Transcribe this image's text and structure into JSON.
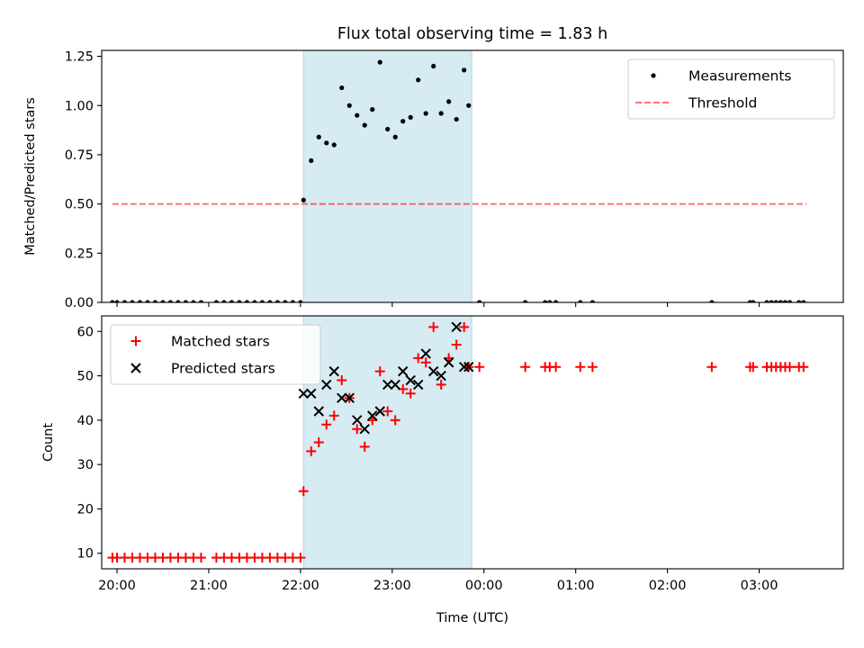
{
  "figure": {
    "title": "Flux total observing time = 1.83 h"
  },
  "chart_data": [
    {
      "type": "scatter",
      "panel": "top",
      "title": "Flux total observing time = 1.83 h",
      "xlabel": "",
      "ylabel": "Matched/Predicted stars",
      "xlim": [
        "19:50",
        "03:55"
      ],
      "ylim": [
        0,
        1.28
      ],
      "x_ticks": [
        "20:00",
        "21:00",
        "22:00",
        "23:00",
        "00:00",
        "01:00",
        "02:00",
        "03:00"
      ],
      "y_ticks": [
        "0.00",
        "0.25",
        "0.50",
        "0.75",
        "1.00",
        "1.25"
      ],
      "shaded_span": {
        "start": "22:02",
        "end": "23:52",
        "color": "#add8e6"
      },
      "legend_position": "upper right",
      "colors": {
        "measurements": "#000000",
        "threshold": "#ff0000"
      },
      "series": [
        {
          "name": "Measurements",
          "marker": "dot",
          "x": [
            "19:57",
            "20:00",
            "20:05",
            "20:10",
            "20:15",
            "20:20",
            "20:25",
            "20:30",
            "20:35",
            "20:40",
            "20:45",
            "20:50",
            "20:55",
            "21:05",
            "21:10",
            "21:15",
            "21:20",
            "21:25",
            "21:30",
            "21:35",
            "21:40",
            "21:45",
            "21:50",
            "21:55",
            "22:00",
            "22:02",
            "22:07",
            "22:12",
            "22:17",
            "22:22",
            "22:27",
            "22:32",
            "22:37",
            "22:42",
            "22:47",
            "22:52",
            "22:57",
            "23:02",
            "23:07",
            "23:12",
            "23:17",
            "23:22",
            "23:27",
            "23:32",
            "23:37",
            "23:42",
            "23:47",
            "23:50",
            "23:57",
            "00:27",
            "00:40",
            "00:43",
            "00:47",
            "01:03",
            "01:11",
            "02:29",
            "02:54",
            "02:56",
            "03:05",
            "03:08",
            "03:11",
            "03:14",
            "03:17",
            "03:20",
            "03:26",
            "03:29"
          ],
          "y": [
            0,
            0,
            0,
            0,
            0,
            0,
            0,
            0,
            0,
            0,
            0,
            0,
            0,
            0,
            0,
            0,
            0,
            0,
            0,
            0,
            0,
            0,
            0,
            0,
            0,
            0.52,
            0.72,
            0.84,
            0.81,
            0.8,
            1.09,
            1.0,
            0.95,
            0.9,
            0.98,
            1.22,
            0.88,
            0.84,
            0.92,
            0.94,
            1.13,
            0.96,
            1.2,
            0.96,
            1.02,
            0.93,
            1.18,
            1.0,
            0,
            0,
            0,
            0,
            0,
            0,
            0,
            0,
            0,
            0,
            0,
            0,
            0,
            0,
            0,
            0,
            0,
            0
          ]
        },
        {
          "name": "Threshold",
          "marker": "dashed-line",
          "x": [
            "19:57",
            "03:31"
          ],
          "y": [
            0.5,
            0.5
          ]
        }
      ]
    },
    {
      "type": "scatter",
      "panel": "bottom",
      "xlabel": "Time (UTC)",
      "ylabel": "Count",
      "xlim": [
        "19:50",
        "03:55"
      ],
      "ylim": [
        6.5,
        63.5
      ],
      "x_ticks": [
        "20:00",
        "21:00",
        "22:00",
        "23:00",
        "00:00",
        "01:00",
        "02:00",
        "03:00"
      ],
      "y_ticks": [
        "10",
        "20",
        "30",
        "40",
        "50",
        "60"
      ],
      "shaded_span": {
        "start": "22:02",
        "end": "23:52",
        "color": "#add8e6"
      },
      "legend_position": "upper left",
      "colors": {
        "matched": "#ff0000",
        "predicted": "#000000"
      },
      "series": [
        {
          "name": "Matched stars",
          "marker": "plus",
          "x": [
            "19:57",
            "20:00",
            "20:05",
            "20:10",
            "20:15",
            "20:20",
            "20:25",
            "20:30",
            "20:35",
            "20:40",
            "20:45",
            "20:50",
            "20:55",
            "21:05",
            "21:10",
            "21:15",
            "21:20",
            "21:25",
            "21:30",
            "21:35",
            "21:40",
            "21:45",
            "21:50",
            "21:55",
            "22:00",
            "22:02",
            "22:07",
            "22:12",
            "22:17",
            "22:22",
            "22:27",
            "22:32",
            "22:37",
            "22:42",
            "22:47",
            "22:52",
            "22:57",
            "23:02",
            "23:07",
            "23:12",
            "23:17",
            "23:22",
            "23:27",
            "23:32",
            "23:37",
            "23:42",
            "23:47",
            "23:50",
            "23:57",
            "00:27",
            "00:40",
            "00:43",
            "00:47",
            "01:03",
            "01:11",
            "02:29",
            "02:54",
            "02:56",
            "03:05",
            "03:08",
            "03:11",
            "03:14",
            "03:17",
            "03:20",
            "03:26",
            "03:29"
          ],
          "y": [
            9,
            9,
            9,
            9,
            9,
            9,
            9,
            9,
            9,
            9,
            9,
            9,
            9,
            9,
            9,
            9,
            9,
            9,
            9,
            9,
            9,
            9,
            9,
            9,
            9,
            24,
            33,
            35,
            39,
            41,
            49,
            45,
            38,
            34,
            40,
            51,
            42,
            40,
            47,
            46,
            54,
            53,
            61,
            48,
            54,
            57,
            61,
            52,
            52,
            52,
            52,
            52,
            52,
            52,
            52,
            52,
            52,
            52,
            52,
            52,
            52,
            52,
            52,
            52,
            52,
            52
          ]
        },
        {
          "name": "Predicted stars",
          "marker": "x",
          "x": [
            "22:02",
            "22:07",
            "22:12",
            "22:17",
            "22:22",
            "22:27",
            "22:32",
            "22:37",
            "22:42",
            "22:47",
            "22:52",
            "22:57",
            "23:02",
            "23:07",
            "23:12",
            "23:17",
            "23:22",
            "23:27",
            "23:32",
            "23:37",
            "23:42",
            "23:47",
            "23:50"
          ],
          "y": [
            46,
            46,
            42,
            48,
            51,
            45,
            45,
            40,
            38,
            41,
            42,
            48,
            48,
            51,
            49,
            48,
            55,
            51,
            50,
            53,
            61,
            52,
            52
          ]
        }
      ]
    }
  ]
}
